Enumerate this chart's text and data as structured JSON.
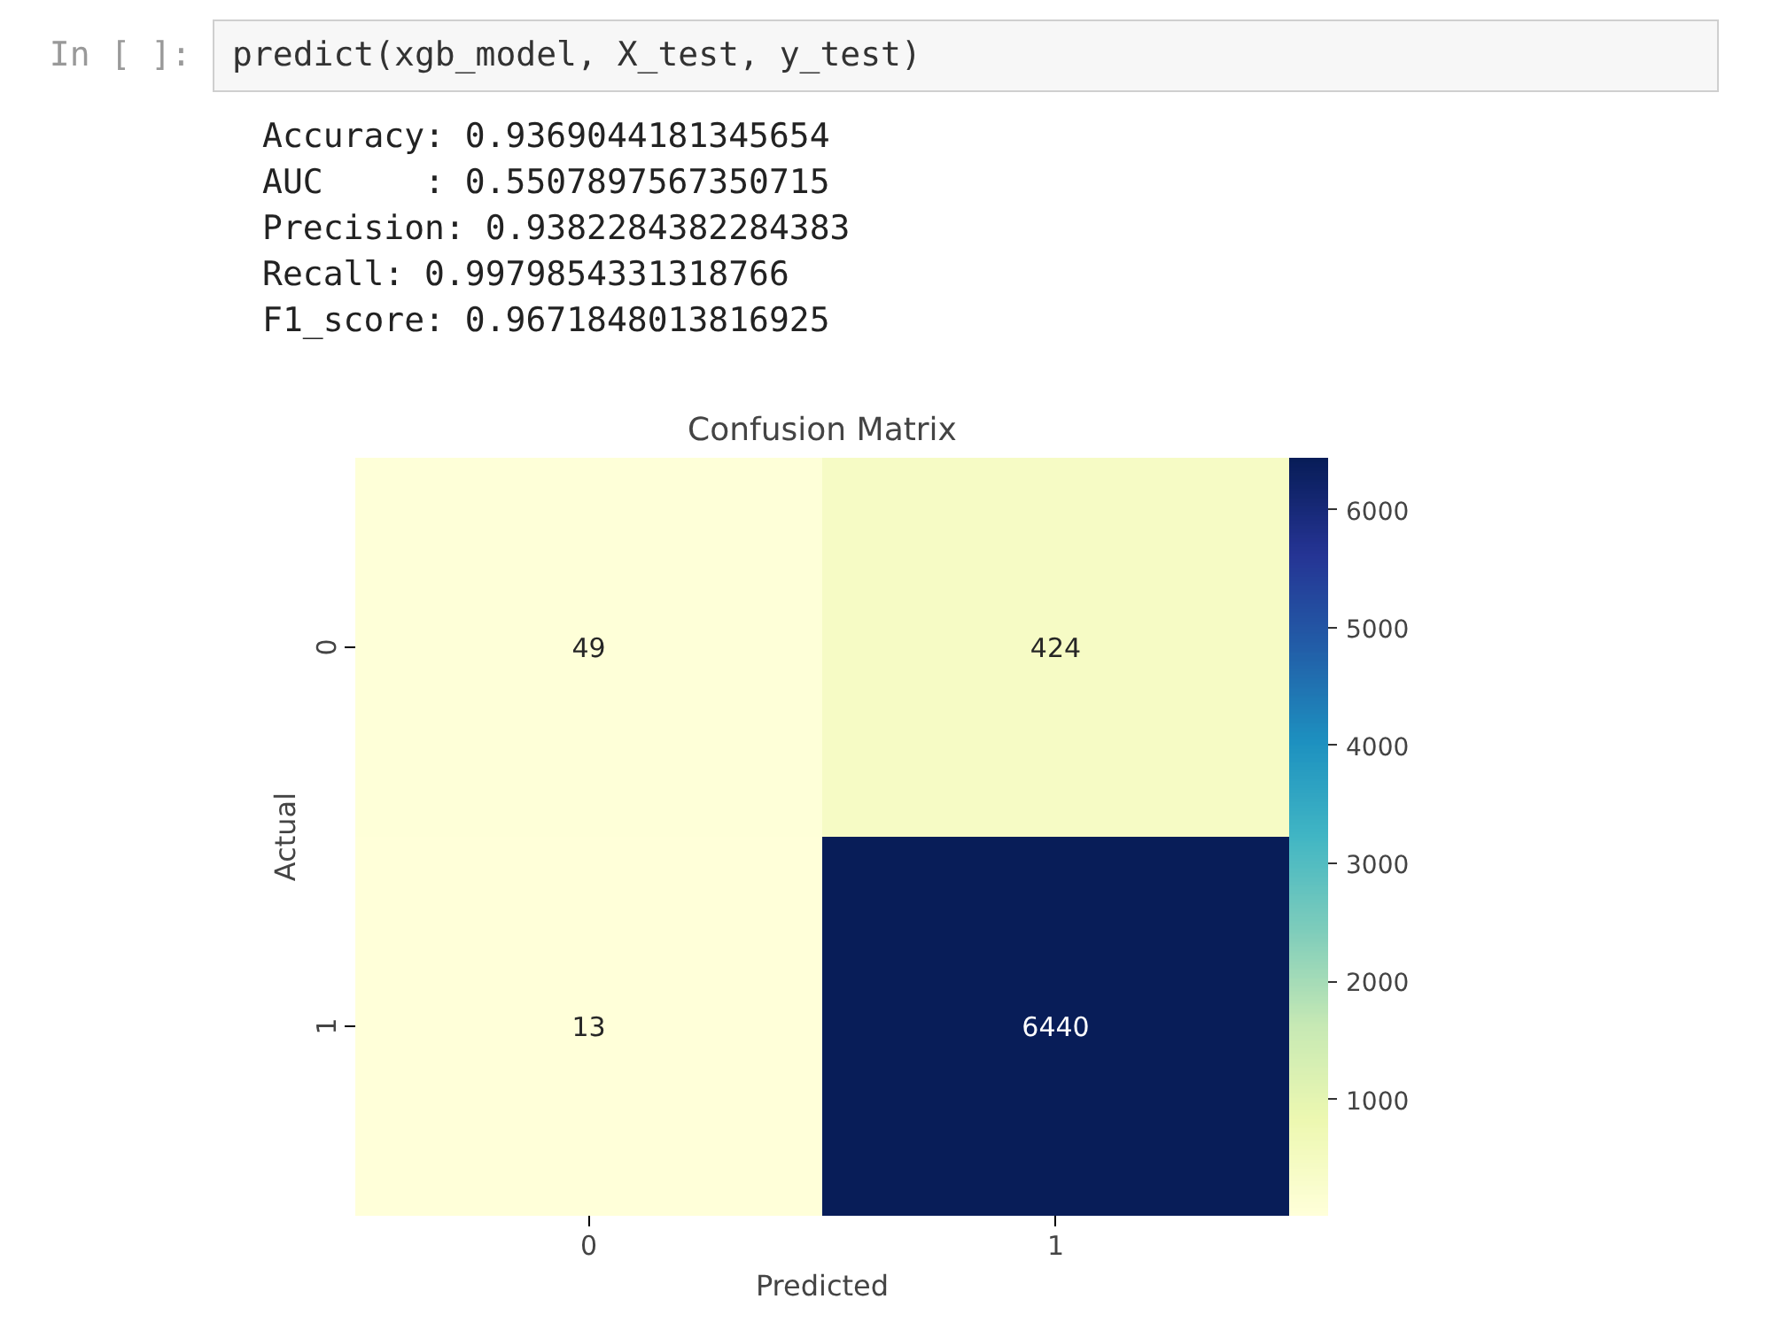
{
  "chart_data": {
    "type": "heatmap",
    "title": "Confusion Matrix",
    "xlabel": "Predicted",
    "ylabel": "Actual",
    "categories": [
      "0",
      "1"
    ],
    "y_categories": [
      "0",
      "1"
    ],
    "cells": [
      [
        49,
        424
      ],
      [
        13,
        6440
      ]
    ],
    "data_labels": true,
    "clim": [
      13,
      6440
    ],
    "cticks": [
      1000,
      2000,
      3000,
      4000,
      5000,
      6000
    ],
    "annotations": [
      "In [ ]:",
      "predict(xgb_model, X_test, y_test)",
      "Accuracy: 0.9369044181345654",
      "AUC     : 0.5507897567350715",
      "Precision: 0.9382284382284383",
      "Recall: 0.9979854331318766",
      "F1_score: 0.9671848013816925"
    ]
  }
}
